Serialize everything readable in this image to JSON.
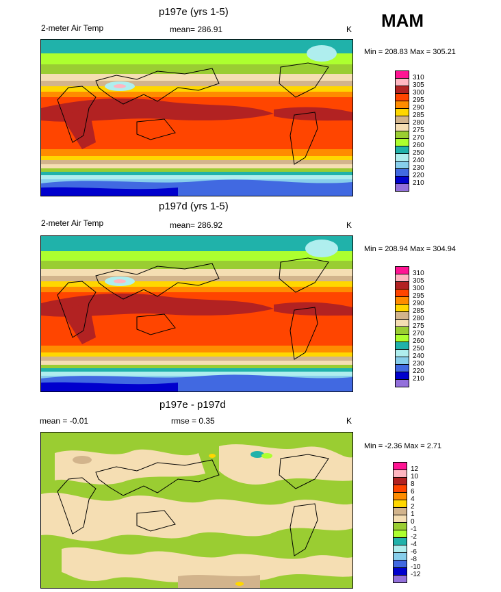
{
  "season": "MAM",
  "panels": [
    {
      "title": "p197e (yrs 1-5)",
      "variable": "2-meter Air Temp",
      "stat": "mean= 286.91",
      "units": "K",
      "minmax": "Min = 208.83 Max = 305.21",
      "scale": "abs"
    },
    {
      "title": "p197d (yrs 1-5)",
      "variable": "2-meter Air Temp",
      "stat": "mean= 286.92",
      "units": "K",
      "minmax": "Min = 208.94 Max = 304.94",
      "scale": "abs"
    },
    {
      "title": "p197e - p197d",
      "variable": "mean =  -0.01",
      "stat": "rmse =   0.35",
      "units": "K",
      "minmax": "Min =  -2.36 Max =   2.71",
      "scale": "diff"
    }
  ],
  "colorbar_abs": {
    "labels": [
      "310",
      "305",
      "300",
      "295",
      "290",
      "285",
      "280",
      "275",
      "270",
      "260",
      "250",
      "240",
      "230",
      "220",
      "210"
    ],
    "colors": [
      "#ff1493",
      "#ffb6c1",
      "#b22222",
      "#ff4500",
      "#ff8c00",
      "#ffd700",
      "#d2b48c",
      "#f5deb3",
      "#9acd32",
      "#adff2f",
      "#20b2aa",
      "#afeeee",
      "#87ceeb",
      "#4169e1",
      "#0000cd",
      "#9370db"
    ]
  },
  "colorbar_diff": {
    "labels": [
      "12",
      "10",
      "8",
      "6",
      "4",
      "2",
      "1",
      "0",
      "-1",
      "-2",
      "-4",
      "-6",
      "-8",
      "-10",
      "-12"
    ],
    "colors": [
      "#ff1493",
      "#ffb6c1",
      "#b22222",
      "#ff4500",
      "#ff8c00",
      "#ffd700",
      "#d2b48c",
      "#f5deb3",
      "#9acd32",
      "#adff2f",
      "#20b2aa",
      "#afeeee",
      "#87ceeb",
      "#4169e1",
      "#0000cd",
      "#9370db"
    ]
  }
}
